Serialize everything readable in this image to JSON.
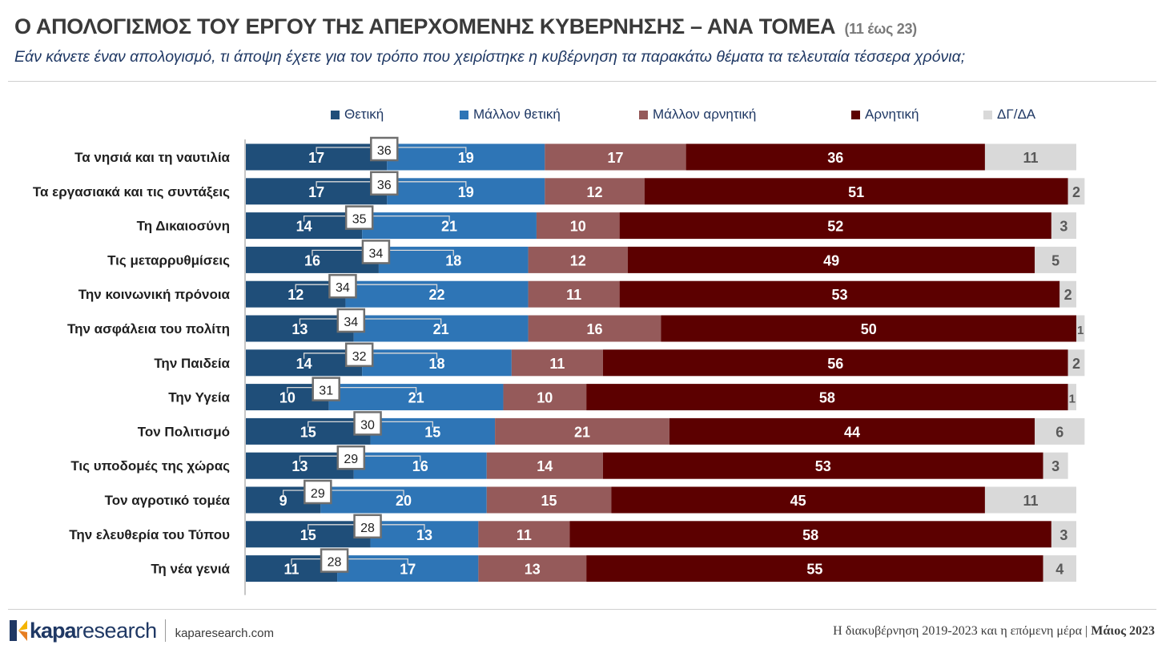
{
  "header": {
    "title": "Ο ΑΠΟΛΟΓΙΣΜΟΣ ΤΟΥ ΕΡΓΟΥ ΤΗΣ ΑΠΕΡΧΟΜΕΝΗΣ ΚΥΒΕΡΝΗΣΗΣ – ΑΝΑ ΤΟΜΕΑ",
    "title_range": "(11 έως 23)",
    "subtitle": "Εάν κάνετε έναν απολογισμό, τι άποψη έχετε για τον τρόπο που χειρίστηκε η κυβέρνηση τα παρακάτω θέματα τα τελευταία τέσσερα χρόνια;"
  },
  "chart_data": {
    "type": "bar",
    "orientation": "horizontal-stacked-100",
    "legend_position": "top",
    "categories": [
      "Τα νησιά και τη ναυτιλία",
      "Τα εργασιακά και τις συντάξεις",
      "Τη Δικαιοσύνη",
      "Τις μεταρρυθμίσεις",
      "Την κοινωνική πρόνοια",
      "Την ασφάλεια του πολίτη",
      "Την Παιδεία",
      "Την Υγεία",
      "Τον Πολιτισμό",
      "Τις υποδομές της χώρας",
      "Τον αγροτικό τομέα",
      "Την ελευθερία του Τύπου",
      "Τη νέα γενιά"
    ],
    "series": [
      {
        "name": "Θετική",
        "color": "#1f4e79",
        "values": [
          17,
          17,
          14,
          16,
          12,
          13,
          14,
          10,
          15,
          13,
          9,
          15,
          11
        ]
      },
      {
        "name": "Μάλλον θετική",
        "color": "#2e75b6",
        "values": [
          19,
          19,
          21,
          18,
          22,
          21,
          18,
          21,
          15,
          16,
          20,
          13,
          17
        ]
      },
      {
        "name": "Μάλλον αρνητική",
        "color": "#955a5a",
        "values": [
          17,
          12,
          10,
          12,
          11,
          16,
          11,
          10,
          21,
          14,
          15,
          11,
          13
        ]
      },
      {
        "name": "Αρνητική",
        "color": "#5c0000",
        "values": [
          36,
          51,
          52,
          49,
          53,
          50,
          56,
          58,
          44,
          53,
          45,
          58,
          55
        ]
      },
      {
        "name": "ΔΓ/ΔΑ",
        "color": "#d9d9d9",
        "values": [
          11,
          2,
          3,
          5,
          2,
          1,
          2,
          1,
          6,
          3,
          11,
          3,
          4
        ]
      }
    ],
    "positive_totals": [
      36,
      36,
      35,
      34,
      34,
      34,
      32,
      31,
      30,
      29,
      29,
      28,
      28
    ],
    "xlim": [
      0,
      100
    ]
  },
  "footer": {
    "brand_kapa": "kapa",
    "brand_research": "research",
    "url": "kaparesearch.com",
    "report": "Η διακυβέρνηση 2019-2023 και η επόμενη μέρα",
    "separator": "|",
    "date": "Μάιος 2023"
  }
}
